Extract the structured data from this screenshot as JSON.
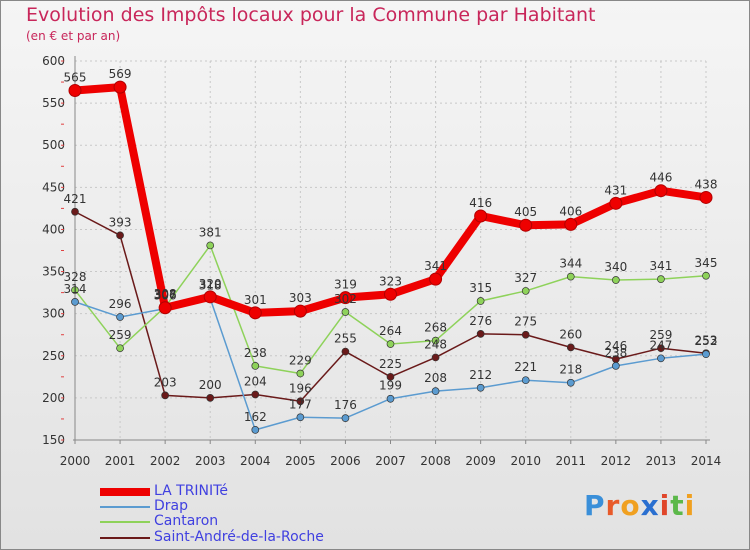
{
  "title": "Evolution des Impôts locaux pour la Commune par Habitant",
  "subtitle": "(en € et par an)",
  "logo": "Proxiti",
  "colors": {
    "title": "#c8265a",
    "grid": "#c8c8c8",
    "axis": "#888888",
    "legend_text": "#4040e0"
  },
  "chart_data": {
    "type": "line",
    "x": [
      "2000",
      "2001",
      "2002",
      "2003",
      "2004",
      "2005",
      "2006",
      "2007",
      "2008",
      "2009",
      "2010",
      "2011",
      "2012",
      "2013",
      "2014"
    ],
    "ylim": [
      150,
      600
    ],
    "yticks": [
      150,
      200,
      250,
      300,
      350,
      400,
      450,
      500,
      550,
      600
    ],
    "grid": true,
    "legend_position": "bottom-left",
    "series": [
      {
        "name": "LA TRINITé",
        "color": "#ee0000",
        "values": [
          565,
          569,
          307,
          320,
          301,
          303,
          319,
          323,
          341,
          416,
          405,
          406,
          431,
          446,
          438
        ]
      },
      {
        "name": "Drap",
        "color": "#5b9bd0",
        "values": [
          314,
          296,
          306,
          318,
          162,
          177,
          176,
          199,
          208,
          212,
          221,
          218,
          238,
          247,
          252
        ]
      },
      {
        "name": "Cantaron",
        "color": "#8ed25a",
        "values": [
          328,
          259,
          308,
          381,
          238,
          229,
          302,
          264,
          268,
          315,
          327,
          344,
          340,
          341,
          345
        ]
      },
      {
        "name": "Saint-André-de-la-Roche",
        "color": "#6a1a1a",
        "values": [
          421,
          393,
          203,
          200,
          204,
          196,
          255,
          225,
          248,
          276,
          275,
          260,
          246,
          259,
          253
        ]
      }
    ]
  }
}
